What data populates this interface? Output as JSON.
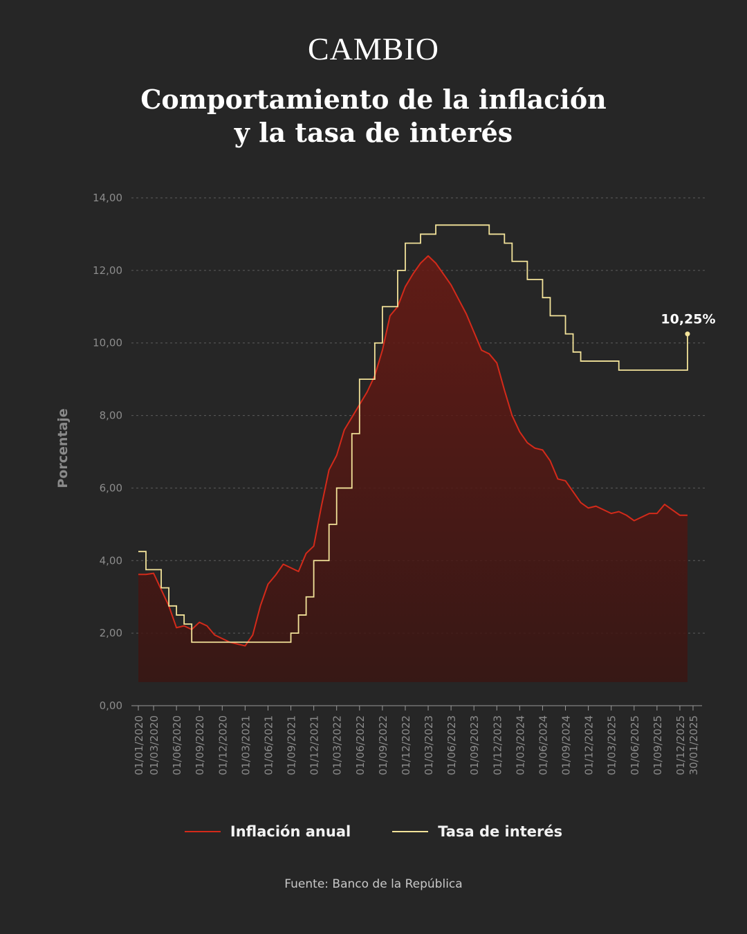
{
  "brand": "CAMBIO",
  "title_line1": "Comportamiento de la inflación",
  "title_line2": "y la tasa de interés",
  "source": "Fuente: Banco de la República",
  "colors": {
    "background": "#262626",
    "inflation_line": "#d42a1a",
    "inflation_fill": "#5a1612",
    "rate_line": "#f3e39a",
    "grid": "#5e5e5e",
    "axis_text": "#8c8c8c"
  },
  "chart_data": {
    "type": "line",
    "title": "Comportamiento de la inflación y la tasa de interés",
    "ylabel": "Porcentaje",
    "ylim": [
      0,
      14
    ],
    "yticks": [
      "0,00",
      "2,00",
      "4,00",
      "6,00",
      "8,00",
      "10,00",
      "12,00",
      "14,00"
    ],
    "grid": true,
    "legend_position": "bottom",
    "xticks": [
      "01/01/2020",
      "01/03/2020",
      "01/06/2020",
      "01/09/2020",
      "01/12/2020",
      "01/03/2021",
      "01/06/2021",
      "01/09/2021",
      "01/12/2021",
      "01/03/2022",
      "01/06/2022",
      "01/09/2022",
      "01/12/2022",
      "01/03/2023",
      "01/06/2023",
      "01/09/2023",
      "01/12/2023",
      "01/03/2024",
      "01/06/2024",
      "01/09/2024",
      "01/12/2024",
      "01/03/2025",
      "01/06/2025",
      "01/09/2025",
      "01/12/2025",
      "30/01/2025"
    ],
    "annotation": "10,25%",
    "series": [
      {
        "name": "Inflación anual",
        "type": "area",
        "months": [
          "2020-01",
          "2020-02",
          "2020-03",
          "2020-04",
          "2020-05",
          "2020-06",
          "2020-07",
          "2020-08",
          "2020-09",
          "2020-10",
          "2020-11",
          "2020-12",
          "2021-01",
          "2021-02",
          "2021-03",
          "2021-04",
          "2021-05",
          "2021-06",
          "2021-07",
          "2021-08",
          "2021-09",
          "2021-10",
          "2021-11",
          "2021-12",
          "2022-01",
          "2022-02",
          "2022-03",
          "2022-04",
          "2022-05",
          "2022-06",
          "2022-07",
          "2022-08",
          "2022-09",
          "2022-10",
          "2022-11",
          "2022-12",
          "2023-01",
          "2023-02",
          "2023-03",
          "2023-04",
          "2023-05",
          "2023-06",
          "2023-07",
          "2023-08",
          "2023-09",
          "2023-10",
          "2023-11",
          "2023-12",
          "2024-01",
          "2024-02",
          "2024-03",
          "2024-04",
          "2024-05",
          "2024-06",
          "2024-07",
          "2024-08",
          "2024-09",
          "2024-10",
          "2024-11",
          "2024-12",
          "2025-01",
          "2025-02",
          "2025-03",
          "2025-04",
          "2025-05",
          "2025-06",
          "2025-07",
          "2025-08",
          "2025-09",
          "2025-10",
          "2025-11",
          "2025-12",
          "2026-01"
        ],
        "values": [
          3.62,
          3.62,
          3.65,
          3.2,
          2.75,
          2.15,
          2.2,
          2.1,
          2.3,
          2.2,
          1.95,
          1.85,
          1.75,
          1.7,
          1.65,
          1.95,
          2.75,
          3.35,
          3.6,
          3.9,
          3.8,
          3.7,
          4.2,
          4.4,
          5.5,
          6.5,
          6.9,
          7.6,
          7.95,
          8.3,
          8.65,
          9.1,
          9.8,
          10.75,
          11.0,
          11.55,
          11.9,
          12.2,
          12.4,
          12.2,
          11.9,
          11.6,
          11.2,
          10.8,
          10.3,
          9.8,
          9.7,
          9.45,
          8.7,
          8.0,
          7.55,
          7.25,
          7.1,
          7.05,
          6.75,
          6.25,
          6.2,
          5.9,
          5.6,
          5.45,
          5.5,
          5.4,
          5.3,
          5.35,
          5.25,
          5.1,
          5.2,
          5.3,
          5.3,
          5.55,
          5.4,
          5.25,
          5.25
        ]
      },
      {
        "name": "Tasa de interés",
        "type": "step",
        "steps": [
          {
            "from": "2020-01",
            "value": 4.25
          },
          {
            "from": "2020-02",
            "value": 3.75
          },
          {
            "from": "2020-04",
            "value": 3.25
          },
          {
            "from": "2020-05",
            "value": 2.75
          },
          {
            "from": "2020-06",
            "value": 2.5
          },
          {
            "from": "2020-07",
            "value": 2.25
          },
          {
            "from": "2020-08",
            "value": 1.75
          },
          {
            "from": "2021-09",
            "value": 2.0
          },
          {
            "from": "2021-10",
            "value": 2.5
          },
          {
            "from": "2021-11",
            "value": 3.0
          },
          {
            "from": "2021-12",
            "value": 4.0
          },
          {
            "from": "2022-02",
            "value": 5.0
          },
          {
            "from": "2022-03",
            "value": 6.0
          },
          {
            "from": "2022-05",
            "value": 7.5
          },
          {
            "from": "2022-06",
            "value": 9.0
          },
          {
            "from": "2022-08",
            "value": 10.0
          },
          {
            "from": "2022-09",
            "value": 11.0
          },
          {
            "from": "2022-11",
            "value": 12.0
          },
          {
            "from": "2022-12",
            "value": 12.75
          },
          {
            "from": "2023-02",
            "value": 13.0
          },
          {
            "from": "2023-04",
            "value": 13.25
          },
          {
            "from": "2023-11",
            "value": 13.0
          },
          {
            "from": "2024-01",
            "value": 12.75
          },
          {
            "from": "2024-02",
            "value": 12.25
          },
          {
            "from": "2024-04",
            "value": 11.75
          },
          {
            "from": "2024-06",
            "value": 11.25
          },
          {
            "from": "2024-07",
            "value": 10.75
          },
          {
            "from": "2024-09",
            "value": 10.25
          },
          {
            "from": "2024-10",
            "value": 9.75
          },
          {
            "from": "2024-11",
            "value": 9.5
          },
          {
            "from": "2025-04",
            "value": 9.25
          },
          {
            "from": "2025-12",
            "value": 9.25
          },
          {
            "from": "2026-01",
            "value": 10.25
          }
        ]
      }
    ]
  },
  "legend": {
    "inflation_label": "Inflación anual",
    "rate_label": "Tasa de interés"
  }
}
